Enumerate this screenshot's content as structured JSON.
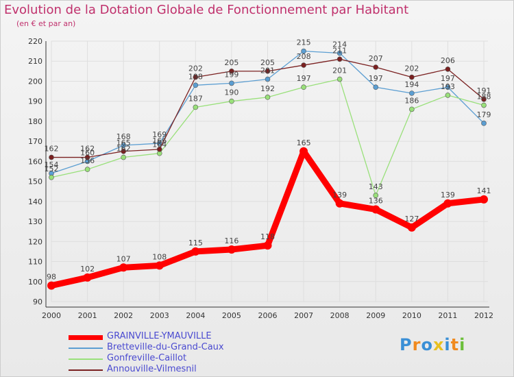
{
  "title": "Evolution de la Dotation Globale de Fonctionnement par Habitant",
  "subtitle": "(en € et par an)",
  "logo": {
    "text": "Proxiti"
  },
  "chart_data": {
    "type": "line",
    "x": [
      2000,
      2001,
      2002,
      2003,
      2004,
      2005,
      2006,
      2007,
      2008,
      2009,
      2010,
      2011,
      2012
    ],
    "ylim": [
      90,
      220
    ],
    "yticks": [
      90,
      100,
      110,
      120,
      130,
      140,
      150,
      160,
      170,
      180,
      190,
      200,
      210,
      220
    ],
    "grid": true,
    "series": [
      {
        "name": "GRAINVILLE-YMAUVILLE",
        "color": "#ff0000",
        "values": [
          98,
          102,
          107,
          108,
          115,
          116,
          118,
          165,
          139,
          136,
          127,
          139,
          141
        ]
      },
      {
        "name": "Bretteville-du-Grand-Caux",
        "color": "#5b9ed2",
        "values": [
          154,
          160,
          168,
          169,
          198,
          199,
          201,
          215,
          214,
          197,
          194,
          197,
          179
        ]
      },
      {
        "name": "Gonfreville-Caillot",
        "color": "#99e07a",
        "values": [
          152,
          156,
          162,
          164,
          187,
          190,
          192,
          197,
          201,
          143,
          186,
          193,
          188
        ]
      },
      {
        "name": "Annouville-Vilmesnil",
        "color": "#7a2020",
        "values": [
          162,
          162,
          165,
          166,
          202,
          205,
          205,
          208,
          211,
          207,
          202,
          206,
          191
        ]
      }
    ]
  }
}
